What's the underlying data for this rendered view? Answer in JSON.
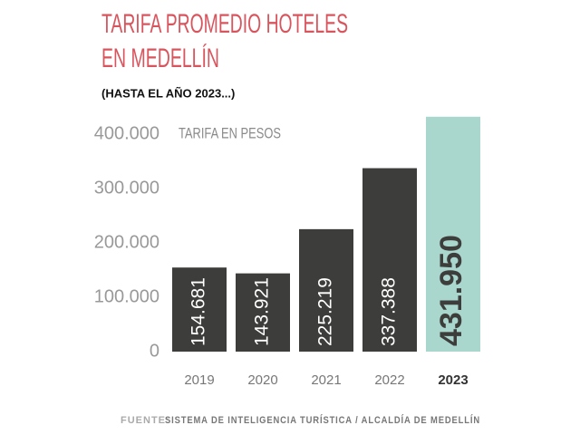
{
  "chart_data": {
    "type": "bar",
    "title": [
      "TARIFA PROMEDIO HOTELES",
      "EN MEDELLÍN"
    ],
    "subtitle": "(HASTA EL AÑO 2023...)",
    "annotation": "TARIFA EN PESOS",
    "categories": [
      "2019",
      "2020",
      "2021",
      "2022",
      "2023"
    ],
    "values": [
      154681,
      143921,
      225219,
      337388,
      431950
    ],
    "value_labels": [
      "154.681",
      "143.921",
      "225.219",
      "337.388",
      "431.950"
    ],
    "colors": [
      "#3d3d3b",
      "#3d3d3b",
      "#3d3d3b",
      "#3d3d3b",
      "#a9d6cd"
    ],
    "ylim": [
      0,
      440000
    ],
    "yticks": [
      0,
      {
        "value": 100000,
        "label": "100.000"
      },
      {
        "value": 200000,
        "label": "200.000"
      },
      {
        "value": 300000,
        "label": "300.000"
      },
      {
        "value": 400000,
        "label": "400.000"
      }
    ],
    "source_label": "FUENTE:",
    "source": "SISTEMA DE INTELIGENCIA TURÍSTICA / ALCALDÍA DE MEDELLÍN"
  }
}
